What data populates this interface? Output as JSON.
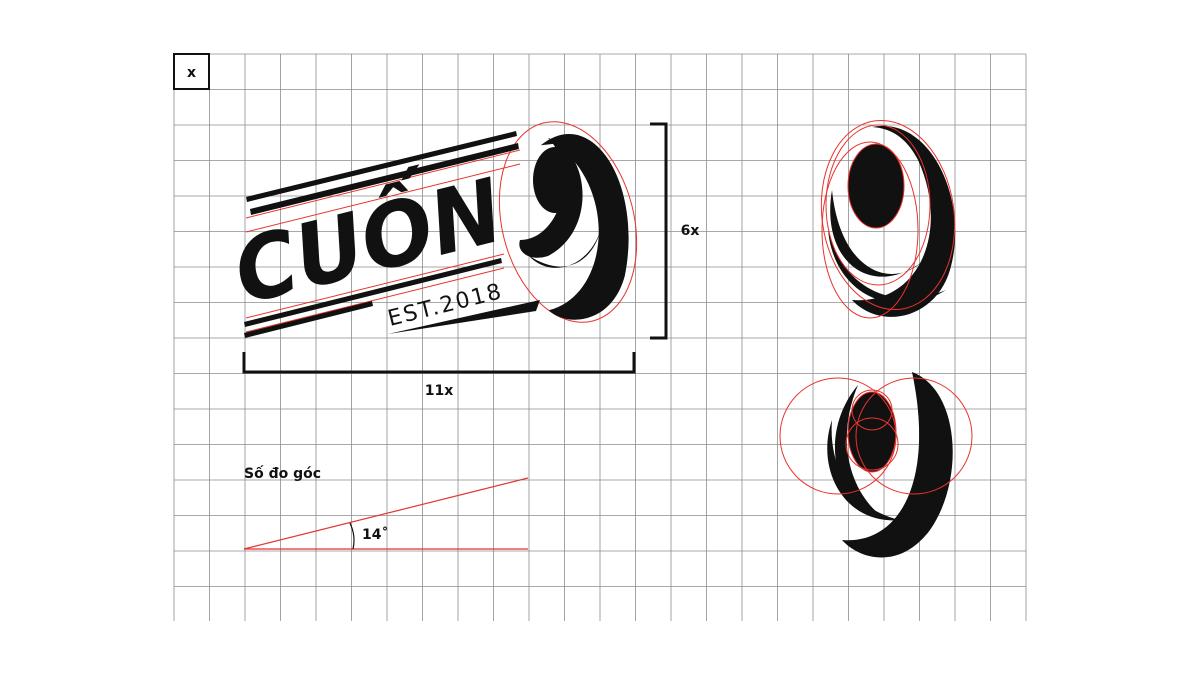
{
  "grid": {
    "unit_label": "x"
  },
  "logo": {
    "wordmark": "CUỐN",
    "tagline": "EST.2018"
  },
  "dimensions": {
    "height_label": "6x",
    "width_label": "11x"
  },
  "angle": {
    "title": "Số đo góc",
    "value_label": "14˚"
  },
  "colors": {
    "grid_line": "#8c8c8c",
    "construction": "#e8332e",
    "ink": "#111111",
    "background": "#ffffff"
  }
}
